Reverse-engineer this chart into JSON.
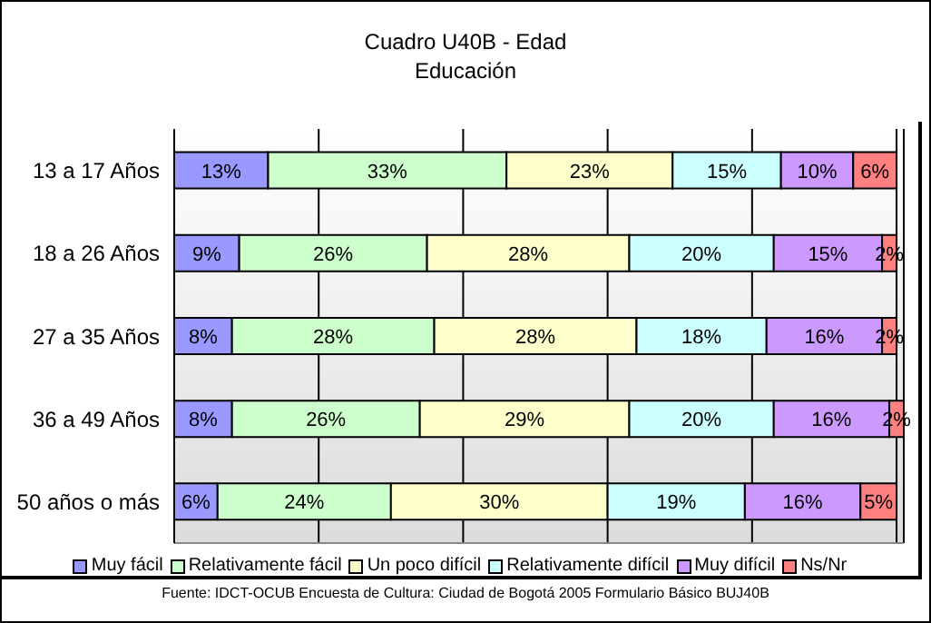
{
  "chart_data": {
    "type": "bar",
    "orientation": "horizontal",
    "stacked": true,
    "title": "Cuadro U40B - Edad",
    "subtitle": "Educación",
    "categories": [
      "13 a 17 Años",
      "18 a 26 Años",
      "27 a 35 Años",
      "36 a 49 Años",
      "50 años o más"
    ],
    "series": [
      {
        "name": "Muy fácil",
        "color": "#9999ff",
        "values": [
          13,
          9,
          8,
          8,
          6
        ],
        "value_labels": [
          "13%",
          "9%",
          "8%",
          "8%",
          "6%"
        ]
      },
      {
        "name": "Relativamente fácil",
        "color": "#ccffcc",
        "values": [
          33,
          26,
          28,
          26,
          24
        ],
        "value_labels": [
          "33%",
          "26%",
          "28%",
          "26%",
          "24%"
        ]
      },
      {
        "name": "Un poco difícil",
        "color": "#ffffcc",
        "values": [
          23,
          28,
          28,
          29,
          30
        ],
        "value_labels": [
          "23%",
          "28%",
          "28%",
          "29%",
          "30%"
        ]
      },
      {
        "name": "Relativamente difícil",
        "color": "#ccffff",
        "values": [
          15,
          20,
          18,
          20,
          19
        ],
        "value_labels": [
          "15%",
          "20%",
          "18%",
          "20%",
          "19%"
        ]
      },
      {
        "name": "Muy difícil",
        "color": "#cc99ff",
        "values": [
          10,
          15,
          16,
          16,
          16
        ],
        "value_labels": [
          "10%",
          "15%",
          "16%",
          "16%",
          "16%"
        ]
      },
      {
        "name": "Ns/Nr",
        "color": "#ff8080",
        "values": [
          6,
          2,
          2,
          2,
          5
        ],
        "value_labels": [
          "6%",
          "2%",
          "2%",
          "2%",
          "5%"
        ]
      }
    ],
    "xlim": [
      0,
      101
    ],
    "xticks": [
      {
        "value": 0,
        "label": null
      },
      {
        "value": 20,
        "label": null
      },
      {
        "value": 40,
        "label": null
      },
      {
        "value": 60,
        "label": null
      },
      {
        "value": 80,
        "label": null
      },
      {
        "value": 100,
        "label": null
      }
    ],
    "grid": "x",
    "tick_labels": "y",
    "legend": "bottom",
    "annotations": [
      "Fuente: IDCT-OCUB Encuesta de Cultura: Ciudad de Bogotá 2005 Formulario Básico BUJ40B"
    ]
  }
}
